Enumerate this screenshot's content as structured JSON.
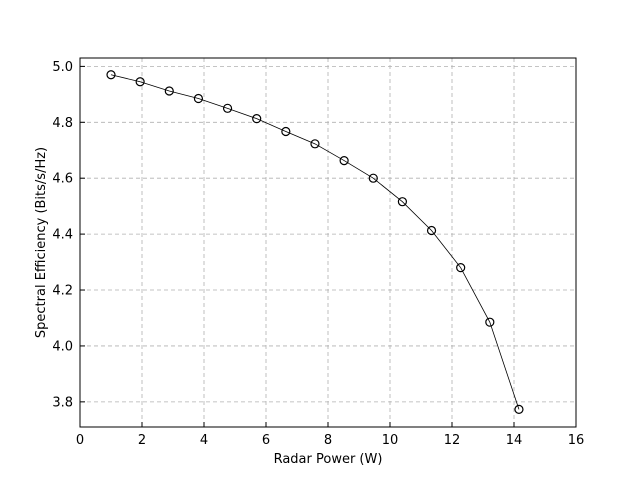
{
  "chart_data": {
    "type": "line",
    "xlabel": "Radar Power (W)",
    "ylabel": "Spectral Efficiency (Bits/s/Hz)",
    "xlim": [
      0,
      16
    ],
    "ylim": [
      3.71,
      5.03
    ],
    "xticks": [
      0,
      2,
      4,
      6,
      8,
      10,
      12,
      14,
      16
    ],
    "yticks": [
      3.8,
      4.0,
      4.2,
      4.4,
      4.6,
      4.8,
      5.0
    ],
    "xtick_labels": [
      "0",
      "2",
      "4",
      "6",
      "8",
      "10",
      "12",
      "14",
      "16"
    ],
    "ytick_labels": [
      "3.8",
      "4.0",
      "4.2",
      "4.4",
      "4.6",
      "4.8",
      "5.0"
    ],
    "grid": true,
    "series": [
      {
        "marker": "circle-open",
        "color": "#000000",
        "x": [
          1.0,
          1.94,
          2.88,
          3.82,
          4.76,
          5.7,
          6.64,
          7.58,
          8.52,
          9.46,
          10.4,
          11.34,
          12.28,
          13.22,
          14.16
        ],
        "y": [
          4.97,
          4.945,
          4.912,
          4.885,
          4.85,
          4.813,
          4.767,
          4.723,
          4.663,
          4.6,
          4.516,
          4.413,
          4.28,
          4.085,
          3.773
        ]
      }
    ]
  }
}
